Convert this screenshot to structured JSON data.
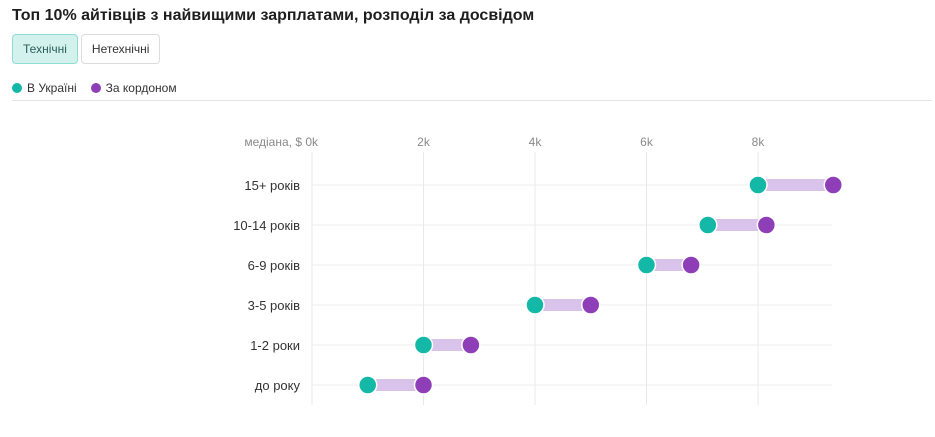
{
  "title": "Топ 10% айтівців з найвищими зарплатами, розподіл за досвідом",
  "tabs": [
    {
      "label": "Технічні",
      "active": true
    },
    {
      "label": "Нетехнічні",
      "active": false
    }
  ],
  "legend": [
    {
      "label": "В Україні",
      "color": "#13b8a6"
    },
    {
      "label": "За кордоном",
      "color": "#8e3fb8"
    }
  ],
  "chart_data": {
    "type": "dumbbell",
    "x_ticks": [
      {
        "value": 0,
        "label": "медіана, $ 0k"
      },
      {
        "value": 2000,
        "label": "2k"
      },
      {
        "value": 4000,
        "label": "4k"
      },
      {
        "value": 6000,
        "label": "6k"
      },
      {
        "value": 8000,
        "label": "8k"
      }
    ],
    "xlim": [
      0,
      9500
    ],
    "categories": [
      "15+ років",
      "10-14 років",
      "6-9 років",
      "3-5 років",
      "1-2 роки",
      "до року"
    ],
    "series": [
      {
        "name": "В Україні",
        "color": "#13b8a6",
        "values": [
          8000,
          7100,
          6000,
          4000,
          2000,
          1000
        ]
      },
      {
        "name": "За кордоном",
        "color": "#8e3fb8",
        "values": [
          9350,
          8150,
          6800,
          5000,
          2850,
          2000
        ]
      }
    ],
    "connector_color": "#d9c3ea",
    "grid": true
  }
}
